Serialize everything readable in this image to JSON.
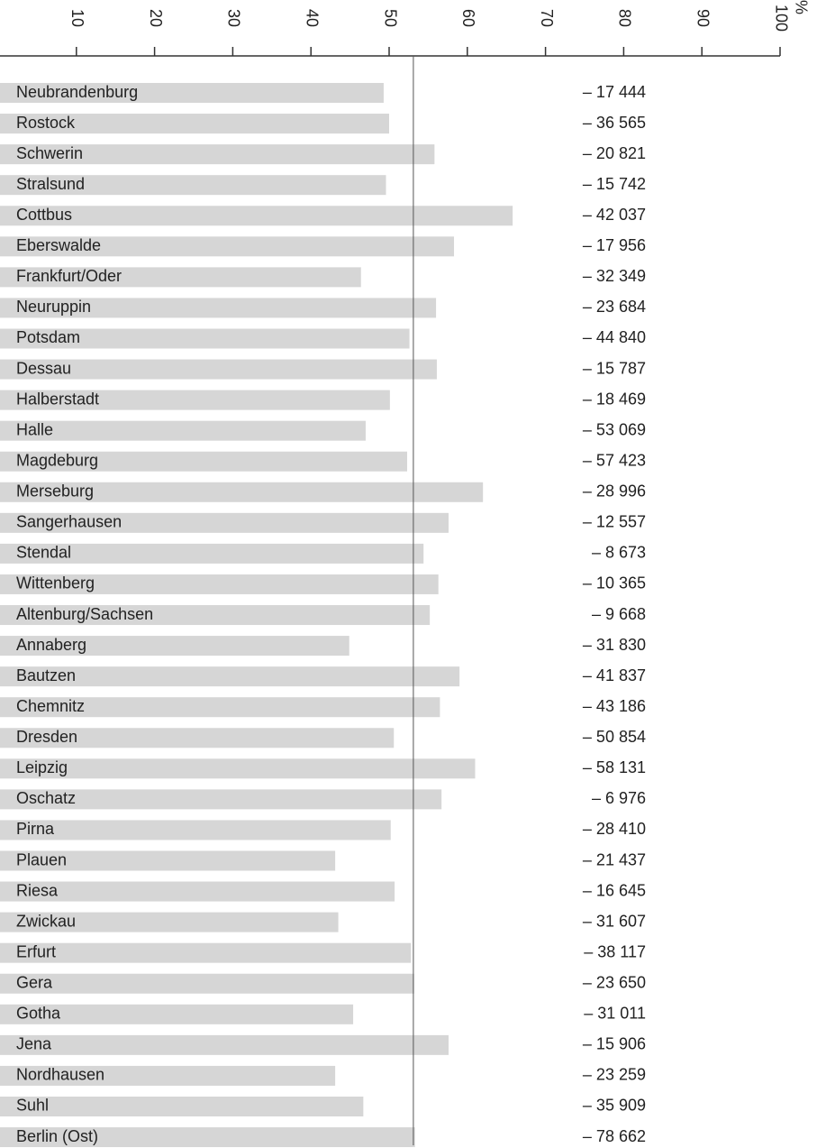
{
  "chart_data": {
    "type": "hbar",
    "x_unit": "%",
    "categories": [
      "Neubrandenburg",
      "Rostock",
      "Schwerin",
      "Stralsund",
      "Cottbus",
      "Eberswalde",
      "Frankfurt/Oder",
      "Neuruppin",
      "Potsdam",
      "Dessau",
      "Halberstadt",
      "Halle",
      "Magdeburg",
      "Merseburg",
      "Sangerhausen",
      "Stendal",
      "Wittenberg",
      "Altenburg/Sachsen",
      "Annaberg",
      "Bautzen",
      "Chemnitz",
      "Dresden",
      "Leipzig",
      "Oschatz",
      "Pirna",
      "Plauen",
      "Riesa",
      "Zwickau",
      "Erfurt",
      "Gera",
      "Gotha",
      "Jena",
      "Nordhausen",
      "Suhl",
      "Berlin  (Ost)"
    ],
    "values": [
      49.3,
      50.0,
      55.8,
      49.6,
      65.8,
      58.3,
      46.4,
      56.0,
      52.6,
      56.1,
      50.1,
      47.0,
      52.3,
      62.0,
      57.6,
      54.4,
      56.3,
      55.2,
      44.9,
      59.0,
      56.5,
      50.6,
      61.0,
      56.7,
      50.2,
      43.1,
      50.7,
      43.5,
      52.8,
      53.2,
      45.4,
      57.6,
      43.1,
      46.7,
      53.3
    ],
    "annotations": [
      "– 17 444",
      "– 36 565",
      "– 20 821",
      "– 15 742",
      "– 42 037",
      "– 17 956",
      "– 32 349",
      "– 23 684",
      "– 44 840",
      "– 15 787",
      "– 18 469",
      "– 53 069",
      "– 57 423",
      "– 28 996",
      "– 12 557",
      "– 8 673",
      "– 10 365",
      "– 9 668",
      "– 31 830",
      "– 41 837",
      "– 43 186",
      "– 50 854",
      "– 58 131",
      "– 6 976",
      "– 28 410",
      "– 21 437",
      "– 16 645",
      "– 31 607",
      "– 38 117",
      "– 23 650",
      "– 31 011",
      "– 15 906",
      "– 23 259",
      "– 35 909",
      "– 78 662"
    ],
    "color": "#d6d6d6",
    "reference_value": 53.1,
    "xlim": [
      0,
      100
    ],
    "xticks": [
      10,
      20,
      30,
      40,
      50,
      60,
      70,
      80,
      90,
      100
    ]
  }
}
